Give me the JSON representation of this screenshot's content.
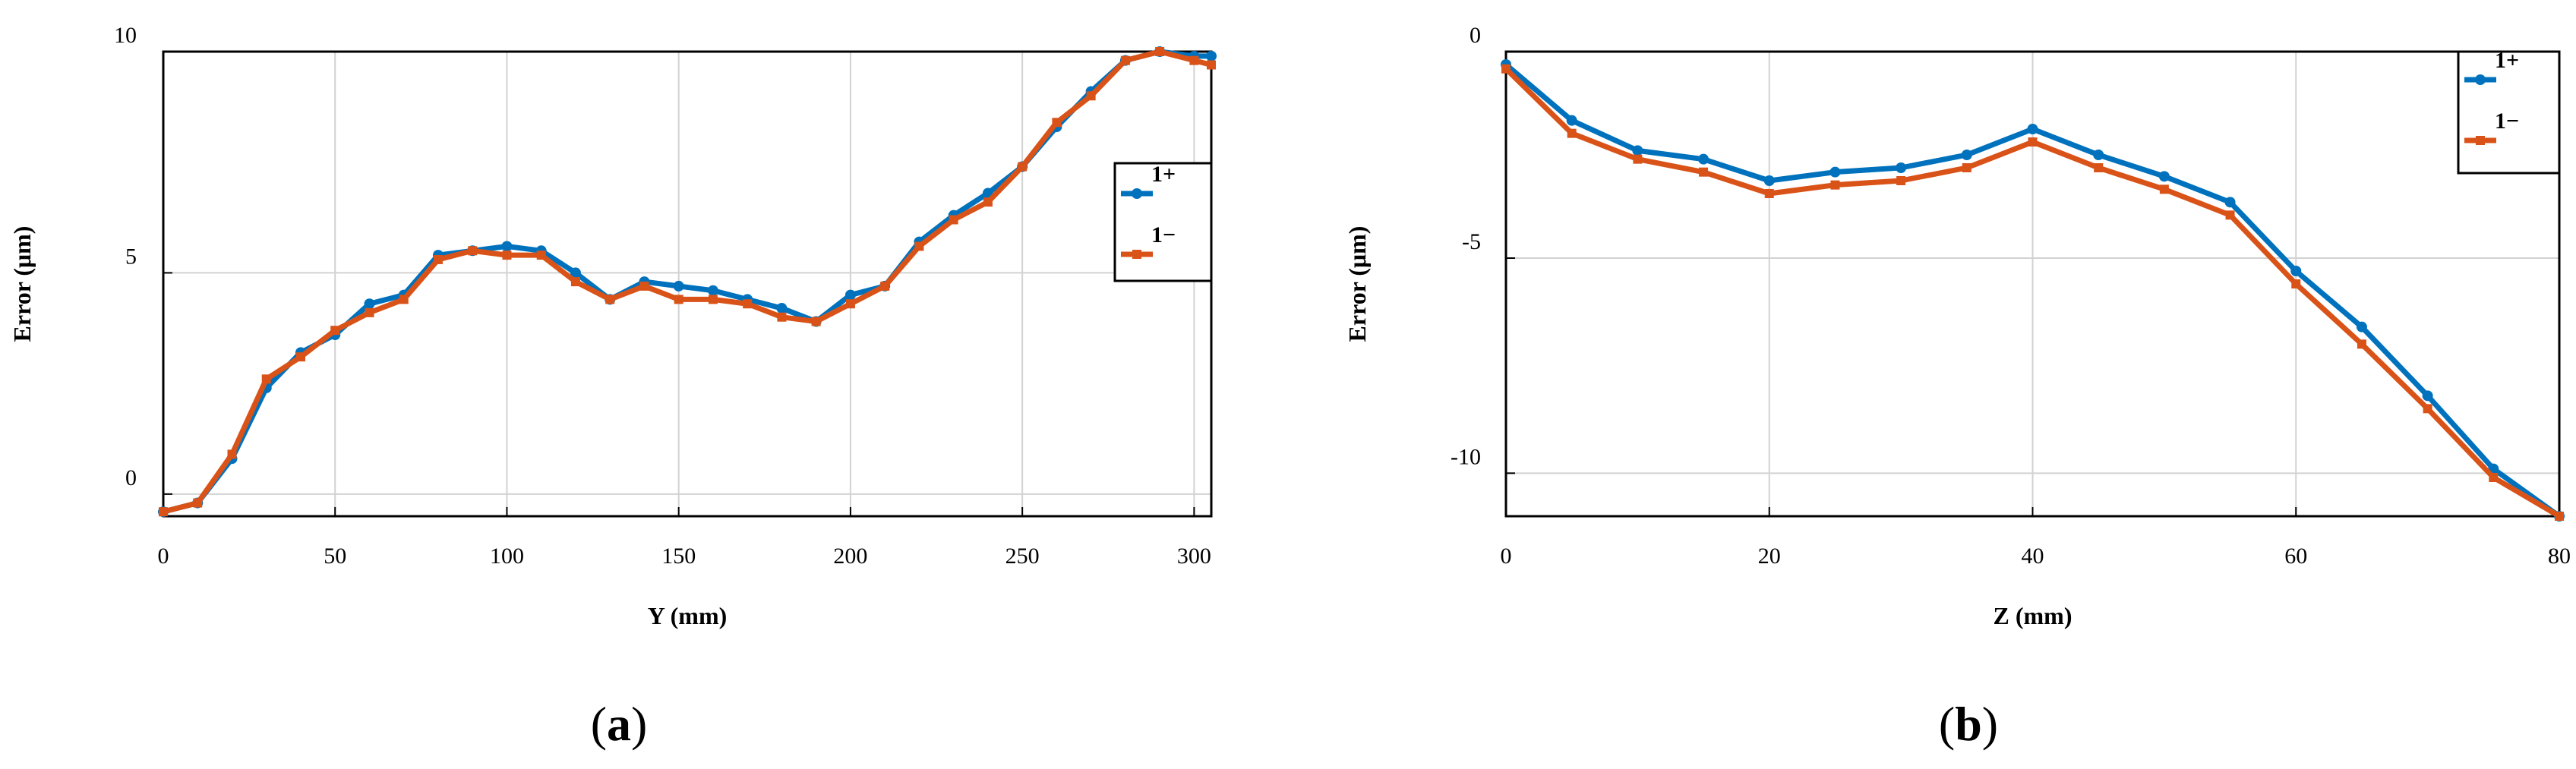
{
  "colors": {
    "series_1plus": "#0072BD",
    "series_1minus": "#D95319",
    "grid": "#d2d2d2",
    "axis": "#000000"
  },
  "chart_data": [
    {
      "type": "line",
      "panel": "a",
      "caption": {
        "open": "(",
        "letter": "a",
        "close": ")"
      },
      "xlabel": "Y (mm)",
      "ylabel": "Error (μm)",
      "xlim": [
        0,
        305
      ],
      "ylim": [
        -0.5,
        10
      ],
      "grid": true,
      "legend_position": "right",
      "x_ticks": [
        0,
        50,
        100,
        150,
        200,
        250,
        300
      ],
      "x_tick_labels": [
        "0",
        "50",
        "100",
        "150",
        "200",
        "250",
        "300"
      ],
      "y_ticks": [
        0,
        5,
        10
      ],
      "y_tick_labels": [
        "0",
        "5",
        "10"
      ],
      "x": [
        0,
        10,
        20,
        30,
        40,
        50,
        60,
        70,
        80,
        90,
        100,
        110,
        120,
        130,
        140,
        150,
        160,
        170,
        180,
        190,
        200,
        210,
        220,
        230,
        240,
        250,
        260,
        270,
        280,
        290,
        300,
        305
      ],
      "series": [
        {
          "name": "1+",
          "marker": "circle",
          "values": [
            -0.4,
            -0.2,
            0.8,
            2.4,
            3.2,
            3.6,
            4.3,
            4.5,
            5.4,
            5.5,
            5.6,
            5.5,
            5.0,
            4.4,
            4.8,
            4.7,
            4.6,
            4.4,
            4.2,
            3.9,
            4.5,
            4.7,
            5.7,
            6.3,
            6.8,
            7.4,
            8.3,
            9.1,
            9.8,
            10.0,
            9.9,
            9.9
          ]
        },
        {
          "name": "1−",
          "marker": "square",
          "values": [
            -0.4,
            -0.2,
            0.9,
            2.6,
            3.1,
            3.7,
            4.1,
            4.4,
            5.3,
            5.5,
            5.4,
            5.4,
            4.8,
            4.4,
            4.7,
            4.4,
            4.4,
            4.3,
            4.0,
            3.9,
            4.3,
            4.7,
            5.6,
            6.2,
            6.6,
            7.4,
            8.4,
            9.0,
            9.8,
            10.0,
            9.8,
            9.7
          ]
        }
      ]
    },
    {
      "type": "line",
      "panel": "b",
      "caption": {
        "open": "(",
        "letter": "b",
        "close": ")"
      },
      "xlabel": "Z (mm)",
      "ylabel": "Error (μm)",
      "xlim": [
        0,
        80
      ],
      "ylim": [
        -11,
        -0.2
      ],
      "grid": true,
      "legend_position": "top-right",
      "x_ticks": [
        0,
        20,
        40,
        60,
        80
      ],
      "x_tick_labels": [
        "0",
        "20",
        "40",
        "60",
        "80"
      ],
      "y_ticks": [
        -0.2,
        -5,
        -10
      ],
      "y_tick_labels": [
        "0",
        "-5",
        "-10"
      ],
      "x": [
        0,
        5,
        10,
        15,
        20,
        25,
        30,
        35,
        40,
        45,
        50,
        55,
        60,
        65,
        70,
        75,
        80
      ],
      "series": [
        {
          "name": "1+",
          "marker": "circle",
          "values": [
            -0.5,
            -1.8,
            -2.5,
            -2.7,
            -3.2,
            -3.0,
            -2.9,
            -2.6,
            -2.0,
            -2.6,
            -3.1,
            -3.7,
            -5.3,
            -6.6,
            -8.2,
            -9.9,
            -11.0
          ]
        },
        {
          "name": "1−",
          "marker": "square",
          "values": [
            -0.6,
            -2.1,
            -2.7,
            -3.0,
            -3.5,
            -3.3,
            -3.2,
            -2.9,
            -2.3,
            -2.9,
            -3.4,
            -4.0,
            -5.6,
            -7.0,
            -8.5,
            -10.1,
            -11.0
          ]
        }
      ]
    }
  ]
}
